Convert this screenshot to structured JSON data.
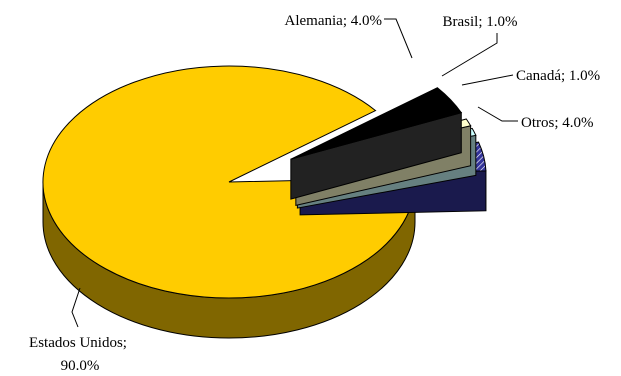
{
  "chart_data": {
    "type": "pie",
    "style": "3d-exploded",
    "legend": "none",
    "slices": [
      {
        "key": "alemania",
        "label": "Alemania",
        "percent_text": "4.0%",
        "value": 4.0,
        "color": "#000000",
        "fill": "solid"
      },
      {
        "key": "brasil",
        "label": "Brasil",
        "percent_text": "1.0%",
        "value": 1.0,
        "color": "#ffffcc",
        "fill": "solid"
      },
      {
        "key": "canada",
        "label": "Canadá",
        "percent_text": "1.0%",
        "value": 1.0,
        "color": "#ccffff",
        "fill": "solid"
      },
      {
        "key": "otros",
        "label": "Otros",
        "percent_text": "4.0%",
        "value": 4.0,
        "color": "#333399",
        "fill": "hatched"
      },
      {
        "key": "estados_unidos",
        "label": "Estados Unidos",
        "percent_text": "90.0%",
        "value": 90.0,
        "color": "#ffcc00",
        "fill": "solid"
      }
    ]
  }
}
